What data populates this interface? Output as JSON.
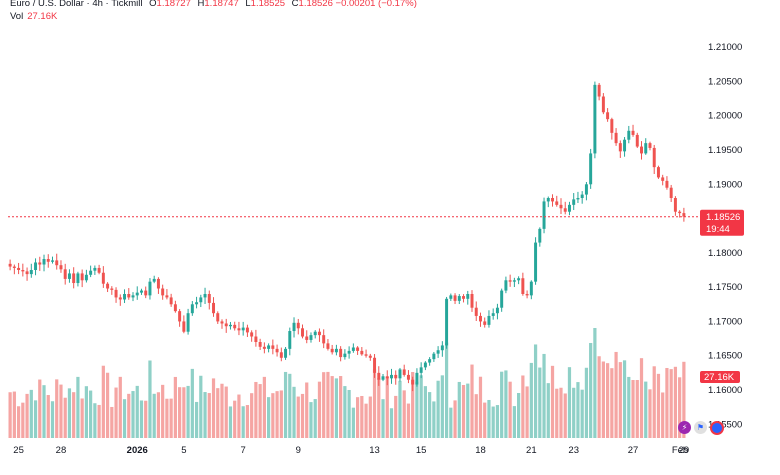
{
  "header": {
    "symbol": "Euro / U.S. Dollar · 4h · Tickmill",
    "open_label": "O",
    "open": "1.18727",
    "high_label": "H",
    "high": "1.18747",
    "low_label": "L",
    "low": "1.18525",
    "close_label": "C",
    "close": "1.18526",
    "change": "−0.00201 (−0.17%)",
    "vol_label": "Vol",
    "vol_value": "27.16K"
  },
  "price_tag": {
    "price": "1.18526",
    "countdown": "19:44"
  },
  "volume_tag": "27.16K",
  "colors": {
    "up": "#26a69a",
    "down": "#ef5350",
    "up_vol": "#8fd0c7",
    "down_vol": "#f5a5a3",
    "price_line": "#f23645"
  },
  "icons": [
    "lightning-icon",
    "flag-icon",
    "eu-flag-icon"
  ],
  "chart_data": {
    "type": "candlestick",
    "title": "Euro / U.S. Dollar",
    "timeframe": "4h",
    "y_ticks": [
      "1.21000",
      "1.20500",
      "1.20000",
      "1.19500",
      "1.19000",
      "1.18500",
      "1.18000",
      "1.17500",
      "1.17000",
      "1.16500",
      "1.16000",
      "1.15500"
    ],
    "ylim": [
      1.153,
      1.2125
    ],
    "x_ticks": [
      "25",
      "28",
      "2026",
      "5",
      "7",
      "9",
      "13",
      "15",
      "18",
      "21",
      "23",
      "27",
      "29",
      "Feb"
    ],
    "last_price": 1.18526,
    "candles_close": [
      1.178,
      1.1778,
      1.1775,
      1.1773,
      1.1769,
      1.1775,
      1.1786,
      1.1783,
      1.1791,
      1.1787,
      1.1789,
      1.1782,
      1.1776,
      1.1762,
      1.177,
      1.1756,
      1.177,
      1.176,
      1.1768,
      1.1774,
      1.1778,
      1.1771,
      1.1755,
      1.1748,
      1.1746,
      1.1735,
      1.1732,
      1.174,
      1.1735,
      1.1738,
      1.1742,
      1.1745,
      1.1738,
      1.1758,
      1.1762,
      1.1748,
      1.1738,
      1.1735,
      1.1725,
      1.1715,
      1.17,
      1.1685,
      1.1712,
      1.1725,
      1.1728,
      1.1735,
      1.174,
      1.1727,
      1.1712,
      1.17,
      1.1697,
      1.1693,
      1.1695,
      1.169,
      1.1687,
      1.1691,
      1.1684,
      1.1678,
      1.167,
      1.1663,
      1.166,
      1.1665,
      1.166,
      1.1655,
      1.1647,
      1.166,
      1.1686,
      1.1698,
      1.169,
      1.1678,
      1.1673,
      1.168,
      1.1685,
      1.168,
      1.1668,
      1.166,
      1.1655,
      1.166,
      1.1648,
      1.1653,
      1.1657,
      1.1662,
      1.1657,
      1.1652,
      1.165,
      1.1647,
      1.1625,
      1.1615,
      1.162,
      1.1617,
      1.1622,
      1.1617,
      1.163,
      1.1622,
      1.1615,
      1.1608,
      1.1625,
      1.1633,
      1.164,
      1.1645,
      1.1653,
      1.1658,
      1.1665,
      1.1733,
      1.1738,
      1.173,
      1.1737,
      1.1733,
      1.174,
      1.172,
      1.1708,
      1.17,
      1.1695,
      1.1708,
      1.1712,
      1.172,
      1.1745,
      1.176,
      1.1758,
      1.176,
      1.1763,
      1.174,
      1.1738,
      1.1758,
      1.1815,
      1.1835,
      1.1875,
      1.188,
      1.1875,
      1.187,
      1.1865,
      1.186,
      1.187,
      1.1878,
      1.188,
      1.1885,
      1.19,
      1.1945,
      1.2045,
      1.2028,
      1.2005,
      1.1995,
      1.1975,
      1.196,
      1.1948,
      1.1965,
      1.1978,
      1.1972,
      1.1955,
      1.1945,
      1.196,
      1.1953,
      1.1925,
      1.191,
      1.1905,
      1.1895,
      1.188,
      1.186,
      1.1858,
      1.1853
    ]
  }
}
